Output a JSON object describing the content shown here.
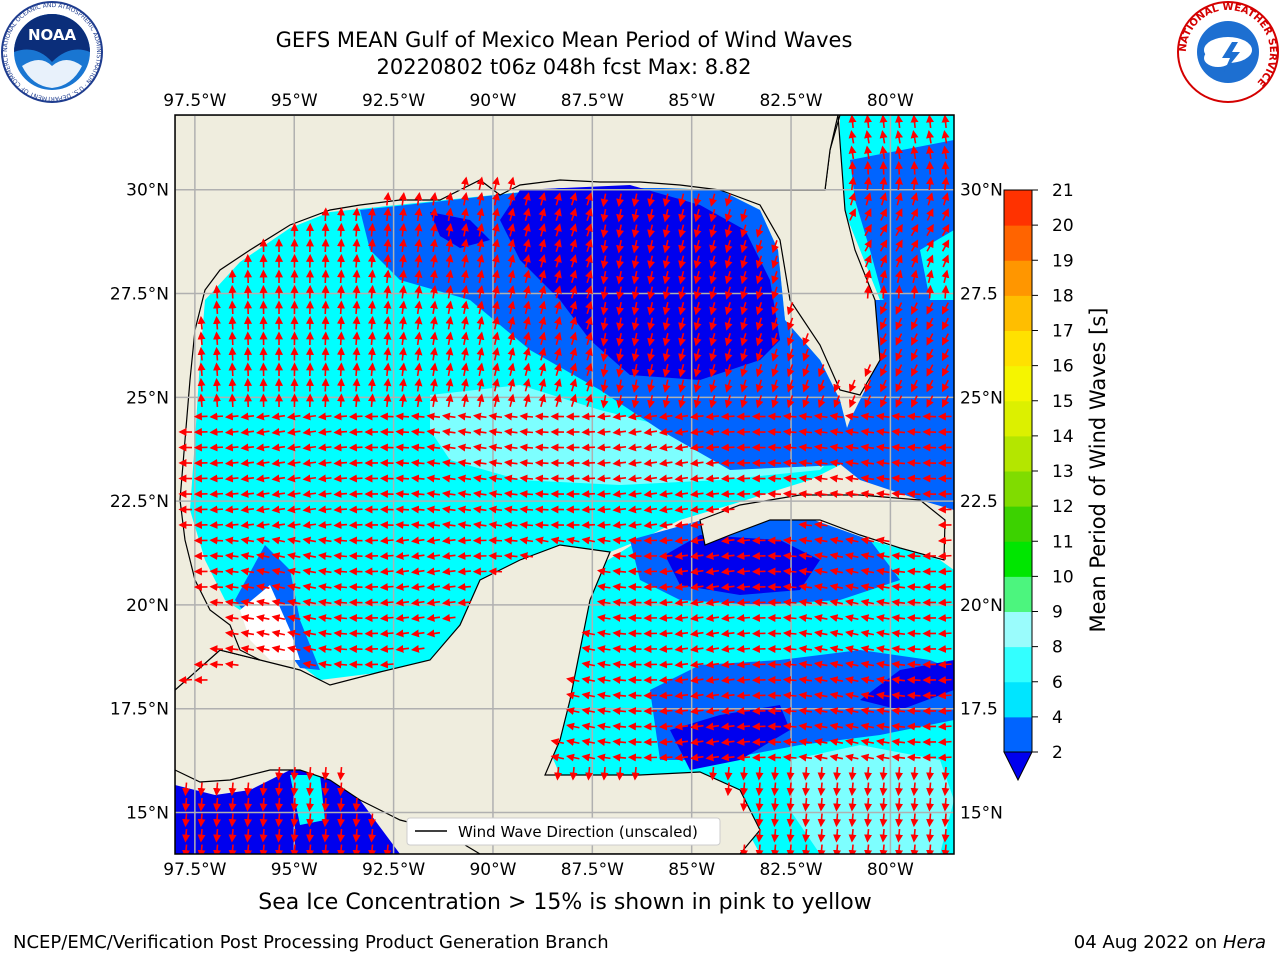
{
  "title": {
    "line1": "GEFS MEAN Gulf of Mexico Mean Period of Wind Waves",
    "line2": "20220802 t06z 048h fcst   Max: 8.82"
  },
  "logos": {
    "noaa_text": "NOAA",
    "noaa_ring_text": "NATIONAL OCEANIC AND ATMOSPHERIC ADMINISTRATION · U.S. DEPARTMENT OF COMMERCE",
    "nws_ring_text": "NATIONAL WEATHER SERVICE"
  },
  "map": {
    "lon_labels": [
      "97.5°W",
      "95°W",
      "92.5°W",
      "90°W",
      "87.5°W",
      "85°W",
      "82.5°W",
      "80°W"
    ],
    "lat_labels_left": [
      "30°N",
      "27.5°N",
      "25°N",
      "22.5°N",
      "20°N",
      "17.5°N",
      "15°N"
    ],
    "lat_labels_right": [
      "30°N",
      "27.5",
      "25°N",
      "22.5",
      "20°N",
      "17.5",
      "15°N"
    ],
    "lon_range": [
      -98,
      -78.4
    ],
    "lat_range": [
      14,
      31.8
    ],
    "legend_label": "Wind Wave Direction (unscaled)",
    "colors": {
      "land": "#efedde",
      "ocean_dark": "#0000ee",
      "ocean_blue": "#0064ff",
      "cyan": "#00ffff",
      "light_cyan": "#80ffff",
      "arrow": "#ff0000",
      "grid": "#b0b0b0"
    }
  },
  "colorbar": {
    "label": "Mean Period of Wind Waves [s]",
    "ticks": [
      "2",
      "4",
      "6",
      "8",
      "9",
      "10",
      "11",
      "12",
      "13",
      "14",
      "15",
      "16",
      "17",
      "18",
      "19",
      "20",
      "21"
    ],
    "colors": [
      "#0064ff",
      "#00e5ff",
      "#33ffff",
      "#9afcfc",
      "#4cf57e",
      "#00e600",
      "#3cd200",
      "#80dc00",
      "#b4e600",
      "#dcf000",
      "#f5f500",
      "#ffe100",
      "#ffbe00",
      "#ff9600",
      "#ff6400",
      "#ff3200"
    ],
    "underflow_color": "#0000ee"
  },
  "footer": {
    "note": "Sea Ice Concentration > 15% is shown in pink to yellow",
    "left": "NCEP/EMC/Verification Post Processing Product Generation Branch",
    "right_date": "04 Aug 2022 on ",
    "right_host": "Hera"
  }
}
